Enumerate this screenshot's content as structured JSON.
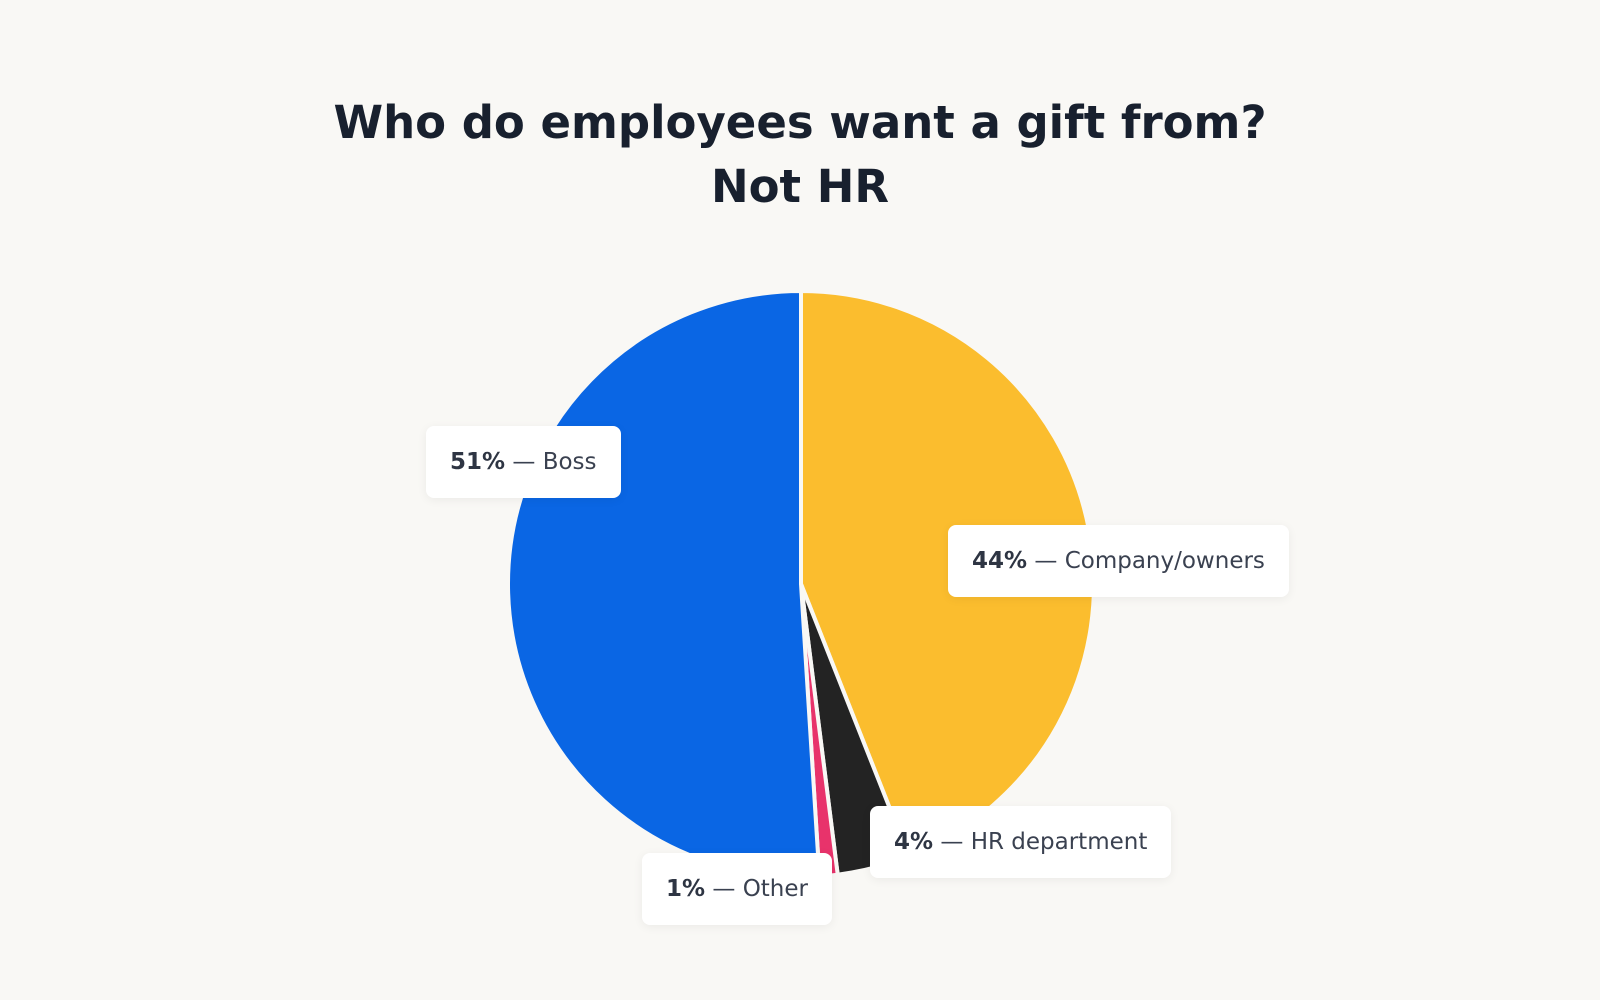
{
  "chart_data": {
    "type": "pie",
    "title": "Who do employees want a gift from?",
    "subtitle": "Not HR",
    "categories": [
      "Company/owners",
      "HR department",
      "Other",
      "Boss"
    ],
    "values": [
      44,
      4,
      1,
      51
    ],
    "value_labels": [
      "44%",
      "4%",
      "1%",
      "51%"
    ],
    "separator": "—",
    "colors": [
      "#fbbd2e",
      "#232323",
      "#e8336b",
      "#0a66e4"
    ]
  }
}
